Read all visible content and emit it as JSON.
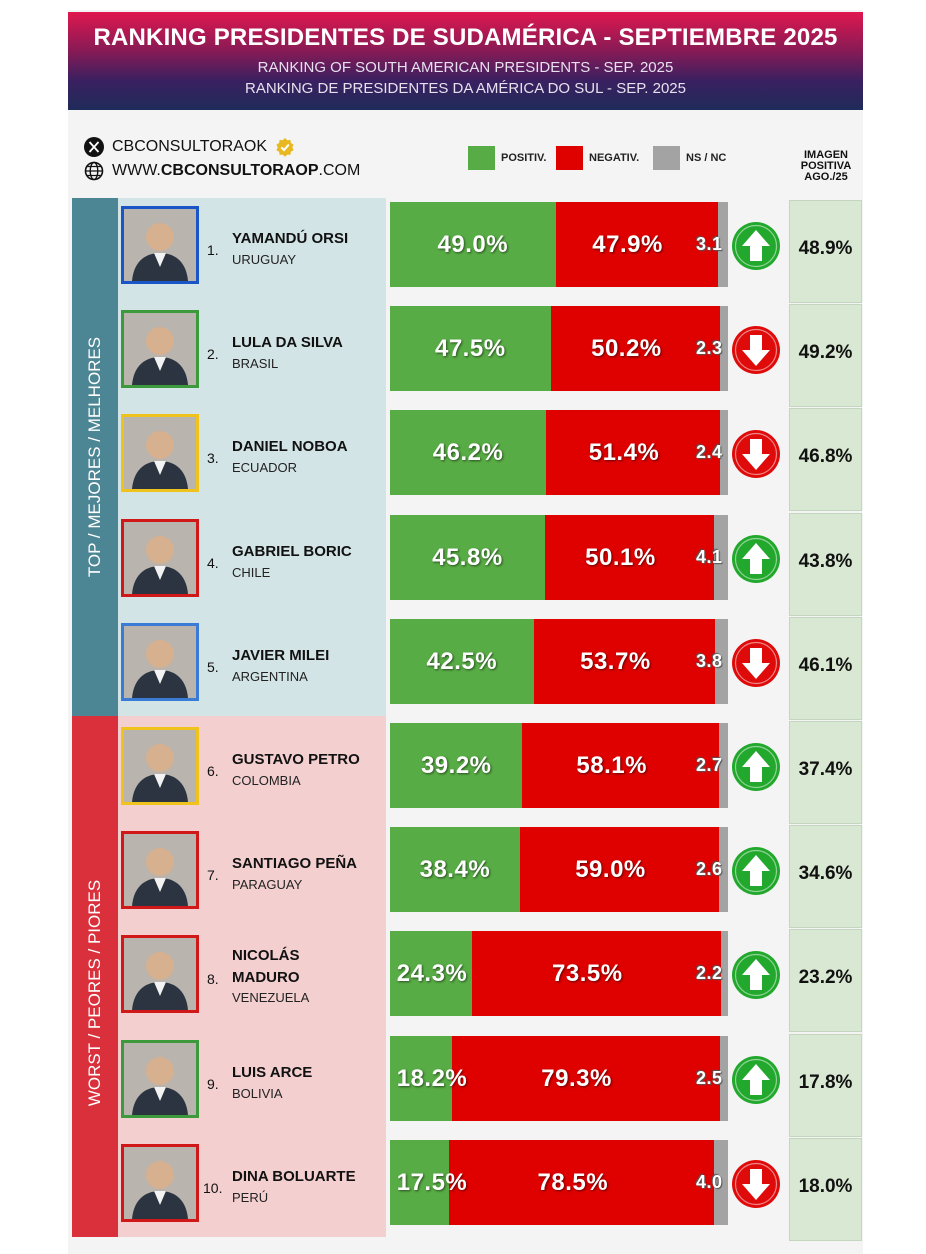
{
  "header": {
    "title": "RANKING PRESIDENTES DE SUDAMÉRICA - SEPTIEMBRE 2025",
    "subtitle_en": "RANKING OF SOUTH AMERICAN PRESIDENTS - SEP. 2025",
    "subtitle_pt": "RANKING DE PRESIDENTES DA AMÉRICA DO SUL - SEP. 2025"
  },
  "brand": {
    "handle": "CBCONSULTORAOK",
    "website_prefix": "WWW.",
    "website_bold": "CBCONSULTORAOP",
    "website_suffix": ".COM"
  },
  "legend": {
    "positive": "POSITIV.",
    "negative": "NEGATIV.",
    "ns": "NS / NC"
  },
  "imagen_header": [
    "IMAGEN",
    "POSITIVA",
    "AGO./25"
  ],
  "groups": {
    "top": "TOP / MEJORES / MELHORES",
    "worst": "WORST / PEORES / PIORES"
  },
  "colors": {
    "positive": "#58ac45",
    "negative": "#df0000",
    "ns": "#a3a3a3",
    "up_arrow": "#22a82c",
    "down_arrow": "#df0b0b",
    "top_band": "#4c8593",
    "worst_band": "#d9303c"
  },
  "chart_data": {
    "type": "bar",
    "stacked": true,
    "orientation": "horizontal",
    "title": "RANKING PRESIDENTES DE SUDAMÉRICA - SEPTIEMBRE 2025",
    "series_names": [
      "POSITIV.",
      "NEGATIV.",
      "NS / NC"
    ],
    "rows": [
      {
        "rank": "1.",
        "name_lines": [
          "YAMANDÚ ORSI"
        ],
        "country": "URUGUAY",
        "positive": 49.0,
        "negative": 47.9,
        "ns": 3.1,
        "ns_label": "3.1",
        "trend": "up",
        "prev": "48.9%",
        "frame": "#1a55c8",
        "group": "top"
      },
      {
        "rank": "2.",
        "name_lines": [
          "LULA DA SILVA"
        ],
        "country": "BRASIL",
        "positive": 47.5,
        "negative": 50.2,
        "ns": 2.3,
        "ns_label": "2.3",
        "trend": "down",
        "prev": "49.2%",
        "frame": "#3c9a3c",
        "group": "top"
      },
      {
        "rank": "3.",
        "name_lines": [
          "DANIEL NOBOA"
        ],
        "country": "ECUADOR",
        "positive": 46.2,
        "negative": 51.4,
        "ns": 2.4,
        "ns_label": "2.4",
        "trend": "down",
        "prev": "46.8%",
        "frame": "#f0c21c",
        "group": "top"
      },
      {
        "rank": "4.",
        "name_lines": [
          "GABRIEL BORIC"
        ],
        "country": "CHILE",
        "positive": 45.8,
        "negative": 50.1,
        "ns": 4.1,
        "ns_label": "4.1",
        "trend": "up",
        "prev": "43.8%",
        "frame": "#d01818",
        "group": "top"
      },
      {
        "rank": "5.",
        "name_lines": [
          "JAVIER MILEI"
        ],
        "country": "ARGENTINA",
        "positive": 42.5,
        "negative": 53.7,
        "ns": 3.8,
        "ns_label": "3.8",
        "trend": "down",
        "prev": "46.1%",
        "frame": "#3a7bd5",
        "group": "top"
      },
      {
        "rank": "6.",
        "name_lines": [
          "GUSTAVO PETRO"
        ],
        "country": "COLOMBIA",
        "positive": 39.2,
        "negative": 58.1,
        "ns": 2.7,
        "ns_label": "2.7",
        "trend": "up",
        "prev": "37.4%",
        "frame": "#f0c21c",
        "group": "worst"
      },
      {
        "rank": "7.",
        "name_lines": [
          "SANTIAGO PEÑA"
        ],
        "country": "PARAGUAY",
        "positive": 38.4,
        "negative": 59.0,
        "ns": 2.6,
        "ns_label": "2.6",
        "trend": "up",
        "prev": "34.6%",
        "frame": "#d01818",
        "group": "worst"
      },
      {
        "rank": "8.",
        "name_lines": [
          "NICOLÁS",
          "MADURO"
        ],
        "country": "VENEZUELA",
        "positive": 24.3,
        "negative": 73.5,
        "ns": 2.2,
        "ns_label": "2.2",
        "trend": "up",
        "prev": "23.2%",
        "frame": "#d01818",
        "group": "worst"
      },
      {
        "rank": "9.",
        "name_lines": [
          "LUIS ARCE"
        ],
        "country": "BOLIVIA",
        "positive": 18.2,
        "negative": 79.3,
        "ns": 2.5,
        "ns_label": "2.5",
        "trend": "up",
        "prev": "17.8%",
        "frame": "#3c9a3c",
        "group": "worst"
      },
      {
        "rank": "10.",
        "name_lines": [
          "DINA BOLUARTE"
        ],
        "country": "PERÚ",
        "positive": 17.5,
        "negative": 78.5,
        "ns": 4.0,
        "ns_label": "4.0",
        "trend": "down",
        "prev": "18.0%",
        "frame": "#d01818",
        "group": "worst"
      }
    ],
    "xlim": [
      0,
      100
    ],
    "xlabel": "",
    "ylabel": ""
  }
}
